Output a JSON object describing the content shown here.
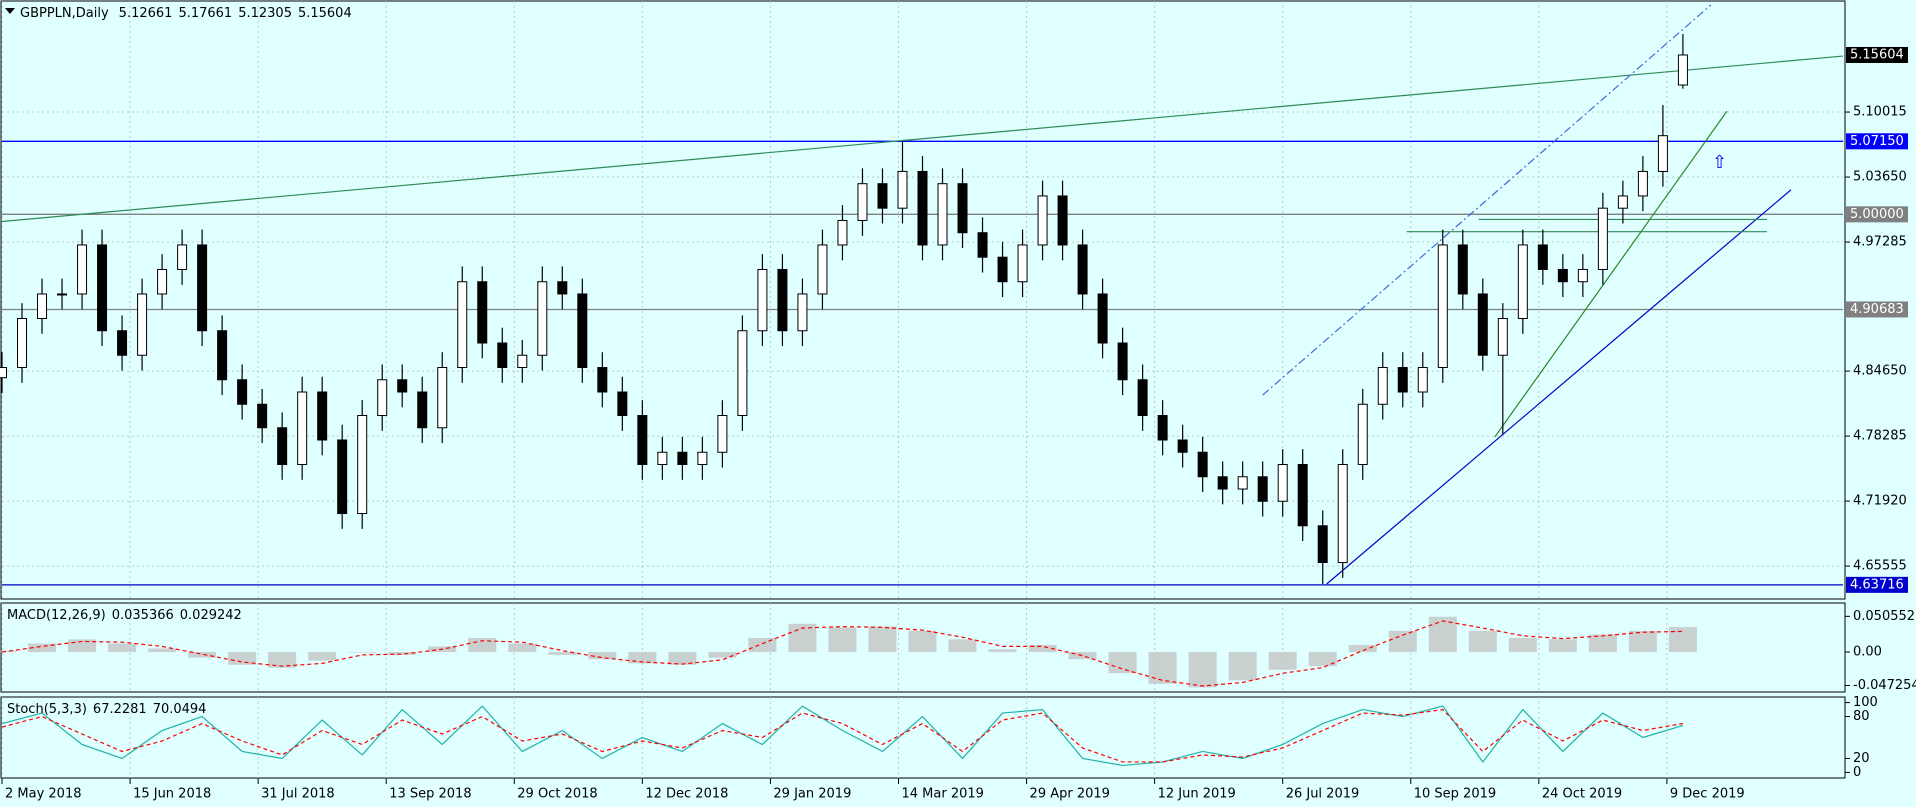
{
  "chart_data": [
    {
      "type": "candlestick",
      "symbol": "GBPPLN,Daily",
      "x": [
        0,
        5,
        10,
        15,
        20,
        25,
        30,
        35,
        40,
        45,
        50,
        55,
        60,
        65,
        70,
        75,
        80,
        85,
        90,
        95,
        100,
        105,
        110,
        115,
        120,
        125,
        130,
        135,
        140,
        145,
        150,
        155,
        160,
        165,
        170,
        175,
        180,
        185,
        190,
        195,
        200,
        205,
        210,
        215,
        220,
        225,
        230,
        235,
        240,
        245,
        250,
        255,
        260,
        265,
        270,
        275,
        280,
        285,
        290,
        295,
        300,
        305,
        310,
        315,
        320,
        325,
        330,
        335,
        340,
        345,
        350,
        355,
        360,
        365,
        370,
        375,
        380,
        385,
        390,
        395,
        400,
        405,
        410,
        415,
        420
      ],
      "open": [
        4.84,
        4.85,
        4.898,
        4.922,
        4.922,
        4.97,
        4.886,
        4.862,
        4.922,
        4.946,
        4.97,
        4.886,
        4.838,
        4.814,
        4.791,
        4.755,
        4.826,
        4.779,
        4.707,
        4.803,
        4.838,
        4.826,
        4.791,
        4.85,
        4.934,
        4.874,
        4.85,
        4.862,
        4.934,
        4.922,
        4.85,
        4.826,
        4.803,
        4.755,
        4.767,
        4.755,
        4.767,
        4.803,
        4.886,
        4.946,
        4.886,
        4.922,
        4.97,
        4.994,
        5.03,
        5.006,
        5.042,
        4.97,
        5.03,
        4.982,
        4.958,
        4.934,
        4.97,
        5.018,
        4.97,
        4.922,
        4.874,
        4.838,
        4.803,
        4.779,
        4.767,
        4.743,
        4.731,
        4.743,
        4.719,
        4.755,
        4.695,
        4.659,
        4.755,
        4.814,
        4.85,
        4.826,
        4.85,
        4.97,
        4.922,
        4.862,
        4.898,
        4.97,
        4.946,
        4.934,
        4.946,
        5.006,
        5.018,
        5.042,
        5.12661
      ],
      "high": [
        4.865,
        4.913,
        4.937,
        4.937,
        4.985,
        4.985,
        4.901,
        4.937,
        4.961,
        4.985,
        4.985,
        4.901,
        4.853,
        4.829,
        4.806,
        4.841,
        4.841,
        4.794,
        4.818,
        4.853,
        4.853,
        4.841,
        4.865,
        4.949,
        4.949,
        4.889,
        4.877,
        4.949,
        4.949,
        4.937,
        4.865,
        4.841,
        4.818,
        4.782,
        4.782,
        4.782,
        4.818,
        4.901,
        4.961,
        4.961,
        4.937,
        4.985,
        5.009,
        5.045,
        5.045,
        5.0715,
        5.057,
        5.045,
        5.045,
        4.997,
        4.973,
        4.985,
        5.033,
        5.033,
        4.985,
        4.937,
        4.889,
        4.853,
        4.818,
        4.794,
        4.782,
        4.758,
        4.758,
        4.758,
        4.77,
        4.77,
        4.71,
        4.77,
        4.829,
        4.865,
        4.865,
        4.865,
        4.985,
        4.985,
        4.937,
        4.913,
        4.985,
        4.985,
        4.961,
        4.961,
        5.021,
        5.033,
        5.057,
        5.107,
        5.17661
      ],
      "low": [
        4.825,
        4.835,
        4.883,
        4.907,
        4.907,
        4.871,
        4.847,
        4.847,
        4.907,
        4.931,
        4.871,
        4.823,
        4.799,
        4.776,
        4.74,
        4.74,
        4.764,
        4.692,
        4.692,
        4.788,
        4.811,
        4.776,
        4.776,
        4.835,
        4.859,
        4.835,
        4.835,
        4.847,
        4.907,
        4.835,
        4.811,
        4.788,
        4.74,
        4.74,
        4.74,
        4.74,
        4.752,
        4.788,
        4.871,
        4.871,
        4.871,
        4.907,
        4.955,
        4.979,
        4.991,
        4.991,
        4.955,
        4.955,
        4.967,
        4.943,
        4.919,
        4.919,
        4.955,
        4.955,
        4.907,
        4.859,
        4.823,
        4.788,
        4.764,
        4.752,
        4.728,
        4.716,
        4.716,
        4.704,
        4.704,
        4.68,
        4.638,
        4.644,
        4.74,
        4.799,
        4.811,
        4.811,
        4.835,
        4.907,
        4.847,
        4.785,
        4.883,
        4.931,
        4.919,
        4.919,
        4.931,
        4.991,
        5.003,
        5.027,
        5.12305
      ],
      "close": [
        4.85,
        4.898,
        4.922,
        4.922,
        4.97,
        4.886,
        4.862,
        4.922,
        4.946,
        4.97,
        4.886,
        4.838,
        4.814,
        4.791,
        4.755,
        4.826,
        4.779,
        4.707,
        4.803,
        4.838,
        4.826,
        4.791,
        4.85,
        4.934,
        4.874,
        4.85,
        4.862,
        4.934,
        4.922,
        4.85,
        4.826,
        4.803,
        4.755,
        4.767,
        4.755,
        4.767,
        4.803,
        4.886,
        4.946,
        4.886,
        4.922,
        4.97,
        4.994,
        5.03,
        5.006,
        5.042,
        4.97,
        5.03,
        4.982,
        4.958,
        4.934,
        4.97,
        5.018,
        4.97,
        4.922,
        4.874,
        4.838,
        4.803,
        4.779,
        4.767,
        4.743,
        4.731,
        4.743,
        4.719,
        4.755,
        4.695,
        4.659,
        4.755,
        4.814,
        4.85,
        4.826,
        4.85,
        4.97,
        4.922,
        4.862,
        4.898,
        4.97,
        4.946,
        4.934,
        4.946,
        5.006,
        5.018,
        5.042,
        5.077,
        5.15604
      ],
      "xlim": [
        0,
        460
      ],
      "ylim": [
        4.6233,
        5.2089
      ],
      "yticks": [
        5.10015,
        {
          "value": 5.0365,
          "label": "5.03650"
        },
        4.97285,
        {
          "value": 4.8465,
          "label": "4.84650"
        },
        4.78285,
        {
          "value": 4.7192,
          "label": "4.71920"
        },
        4.65555
      ],
      "xticks": [
        {
          "value": 0,
          "label": "2 May 2018"
        },
        {
          "value": 32,
          "label": "15 Jun 2018"
        },
        {
          "value": 64,
          "label": "31 Jul 2018"
        },
        {
          "value": 96,
          "label": "13 Sep 2018"
        },
        {
          "value": 128,
          "label": "29 Oct 2018"
        },
        {
          "value": 160,
          "label": "12 Dec 2018"
        },
        {
          "value": 192,
          "label": "29 Jan 2019"
        },
        {
          "value": 224,
          "label": "14 Mar 2019"
        },
        {
          "value": 256,
          "label": "29 Apr 2019"
        },
        {
          "value": 288,
          "label": "12 Jun 2019"
        },
        {
          "value": 320,
          "label": "26 Jul 2019"
        },
        {
          "value": 352,
          "label": "10 Sep 2019"
        },
        {
          "value": 384,
          "label": "24 Oct 2019"
        },
        {
          "value": 416,
          "label": "9 Dec 2019"
        }
      ],
      "levels": [
        {
          "value": 5.0715,
          "label": "5.07150",
          "color": "#0000ff"
        },
        {
          "value": 5.0,
          "label": "5.00000",
          "color": "#808080"
        },
        {
          "value": 4.90683,
          "label": "4.90683",
          "color": "#808080"
        },
        {
          "value": 4.63716,
          "label": "4.63716",
          "color": "#0000cd"
        }
      ],
      "trendlines": [
        {
          "x": [
            0,
            460
          ],
          "y": [
            4.993,
            5.155
          ],
          "color": "#2e8b57",
          "dash": false
        },
        {
          "x": [
            315,
            427
          ],
          "y": [
            4.823,
            5.205
          ],
          "color": "#4169e1",
          "dash": true
        },
        {
          "x": [
            331,
            447
          ],
          "y": [
            4.638,
            5.024
          ],
          "color": "#0000cd",
          "dash": false
        },
        {
          "x": [
            373,
            431
          ],
          "y": [
            4.782,
            5.101
          ],
          "color": "#228b22",
          "dash": false
        },
        {
          "x": [
            351,
            441
          ],
          "y": [
            4.983,
            4.983
          ],
          "color": "#2e8b57",
          "dash": false
        },
        {
          "x": [
            369,
            441
          ],
          "y": [
            4.995,
            4.995
          ],
          "color": "#2e8b57",
          "dash": false
        }
      ],
      "bull_color": "#ffffff",
      "bear_color": "#000000",
      "grid": true
    },
    {
      "type": "macd",
      "label": "MACD(12,26,9)",
      "x": [
        0,
        10,
        20,
        30,
        40,
        50,
        60,
        70,
        80,
        90,
        100,
        110,
        120,
        130,
        140,
        150,
        160,
        170,
        180,
        190,
        200,
        210,
        220,
        230,
        240,
        250,
        260,
        270,
        280,
        290,
        300,
        310,
        320,
        330,
        340,
        350,
        360,
        370,
        380,
        390,
        400,
        410,
        420
      ],
      "series": [
        {
          "name": "MACD",
          "color": "#c0c0c0",
          "values": [
            0.002,
            0.012,
            0.018,
            0.012,
            0.005,
            -0.008,
            -0.018,
            -0.022,
            -0.012,
            0.0,
            -0.004,
            0.008,
            0.02,
            0.012,
            -0.004,
            -0.01,
            -0.016,
            -0.018,
            -0.008,
            0.02,
            0.04,
            0.035,
            0.036,
            0.03,
            0.018,
            0.004,
            0.01,
            -0.01,
            -0.03,
            -0.045,
            -0.05,
            -0.04,
            -0.025,
            -0.02,
            0.01,
            0.03,
            0.05,
            0.03,
            0.02,
            0.018,
            0.025,
            0.03,
            0.035366
          ]
        },
        {
          "name": "Signal",
          "color": "#ff0000",
          "values": [
            0.0,
            0.008,
            0.015,
            0.014,
            0.008,
            -0.003,
            -0.014,
            -0.02,
            -0.016,
            -0.004,
            -0.003,
            0.004,
            0.016,
            0.014,
            0.002,
            -0.008,
            -0.014,
            -0.017,
            -0.011,
            0.012,
            0.034,
            0.036,
            0.035,
            0.031,
            0.021,
            0.008,
            0.008,
            -0.005,
            -0.024,
            -0.04,
            -0.048,
            -0.043,
            -0.03,
            -0.022,
            0.002,
            0.024,
            0.044,
            0.034,
            0.023,
            0.019,
            0.023,
            0.028,
            0.029242
          ]
        }
      ],
      "xlim": [
        0,
        460
      ],
      "ylim": [
        -0.0565,
        0.0694
      ],
      "yticks": [
        0.050552,
        {
          "value": 0,
          "label": "0.00"
        },
        -0.047254
      ]
    },
    {
      "type": "stochastic",
      "label": "Stoch(5,3,3)",
      "x": [
        0,
        10,
        20,
        30,
        40,
        50,
        60,
        70,
        80,
        90,
        100,
        110,
        120,
        130,
        140,
        150,
        160,
        170,
        180,
        190,
        200,
        210,
        220,
        230,
        240,
        250,
        260,
        270,
        280,
        290,
        300,
        310,
        320,
        330,
        340,
        350,
        360,
        370,
        380,
        390,
        400,
        410,
        420
      ],
      "series": [
        {
          "name": "Main",
          "color": "#20b2aa",
          "values": [
            70,
            85,
            40,
            20,
            60,
            80,
            30,
            20,
            75,
            25,
            90,
            40,
            95,
            30,
            60,
            20,
            50,
            30,
            70,
            40,
            95,
            60,
            30,
            80,
            20,
            85,
            90,
            20,
            10,
            15,
            30,
            20,
            40,
            70,
            90,
            80,
            95,
            15,
            90,
            30,
            85,
            50,
            67.2281
          ]
        },
        {
          "name": "Signal",
          "color": "#ff0000",
          "values": [
            65,
            80,
            55,
            30,
            45,
            70,
            45,
            25,
            60,
            40,
            75,
            55,
            80,
            45,
            55,
            30,
            45,
            35,
            60,
            50,
            85,
            70,
            40,
            70,
            30,
            75,
            85,
            35,
            15,
            15,
            25,
            22,
            35,
            60,
            85,
            82,
            90,
            30,
            75,
            45,
            75,
            60,
            70.0494
          ]
        }
      ],
      "xlim": [
        0,
        460
      ],
      "ylim": [
        -8,
        108
      ],
      "yticks": [
        100,
        80,
        20,
        0
      ]
    }
  ]
}
